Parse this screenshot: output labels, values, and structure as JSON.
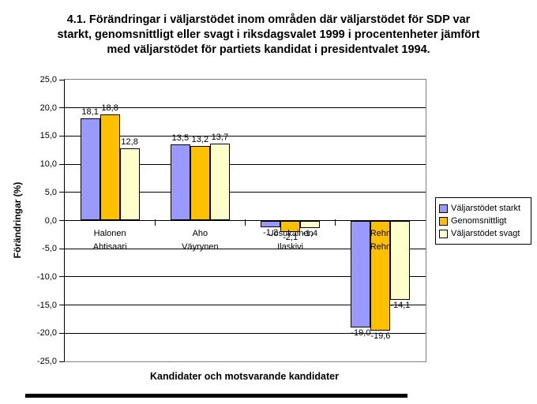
{
  "chart_data": {
    "type": "bar",
    "title": "4.1. Förändringar i väljarstödet inom områden där väljarstödet för SDP var starkt, genomsnittligt eller svagt i riksdagsvalet 1999 i procentenheter jämfört med väljarstödet för partiets kandidat i presidentvalet 1994.",
    "xlabel": "Kandidater och motsvarande kandidater",
    "ylabel": "Förändringar (%)",
    "ylim": [
      -25,
      25
    ],
    "ytick_step": 5,
    "ytick_values": [
      25,
      20,
      15,
      10,
      5,
      0,
      -5,
      -10,
      -15,
      -20,
      -25
    ],
    "ytick_labels": [
      "25,0",
      "20,0",
      "15,0",
      "10,0",
      "5,0",
      "0,0",
      "-5,0",
      "-10,0",
      "-15,0",
      "-20,0",
      "-25,0"
    ],
    "grid": true,
    "legend_position": "right",
    "categories": [
      {
        "line1": "Halonen",
        "line2": "Ahtisaari"
      },
      {
        "line1": "Aho",
        "line2": "Väyrynen"
      },
      {
        "line1": "Uosukainen",
        "line2": "Ilaskivi"
      },
      {
        "line1": "Rehn",
        "line2": "Rehn"
      }
    ],
    "series": [
      {
        "name": "Väljarstödet starkt",
        "color": "#9999FF",
        "values": [
          18.1,
          13.5,
          -1.2,
          -19.0
        ],
        "labels": [
          "18,1",
          "13,5",
          "-1,2",
          "-19,0"
        ]
      },
      {
        "name": "Genomsnittligt",
        "color": "#FFC000",
        "values": [
          18.8,
          13.2,
          -2.1,
          -19.6
        ],
        "labels": [
          "18,8",
          "13,2",
          "-2,1",
          "-19,6"
        ]
      },
      {
        "name": "Väljarstödet svagt",
        "color": "#FFFFCC",
        "values": [
          12.8,
          13.7,
          -1.4,
          -14.1
        ],
        "labels": [
          "12,8",
          "13,7",
          "-1,4",
          "-14,1"
        ]
      }
    ],
    "colors": {
      "gridline": "#000000",
      "plot_border": "#808080",
      "axis": "#000000",
      "background": "#FFFFFF"
    }
  }
}
